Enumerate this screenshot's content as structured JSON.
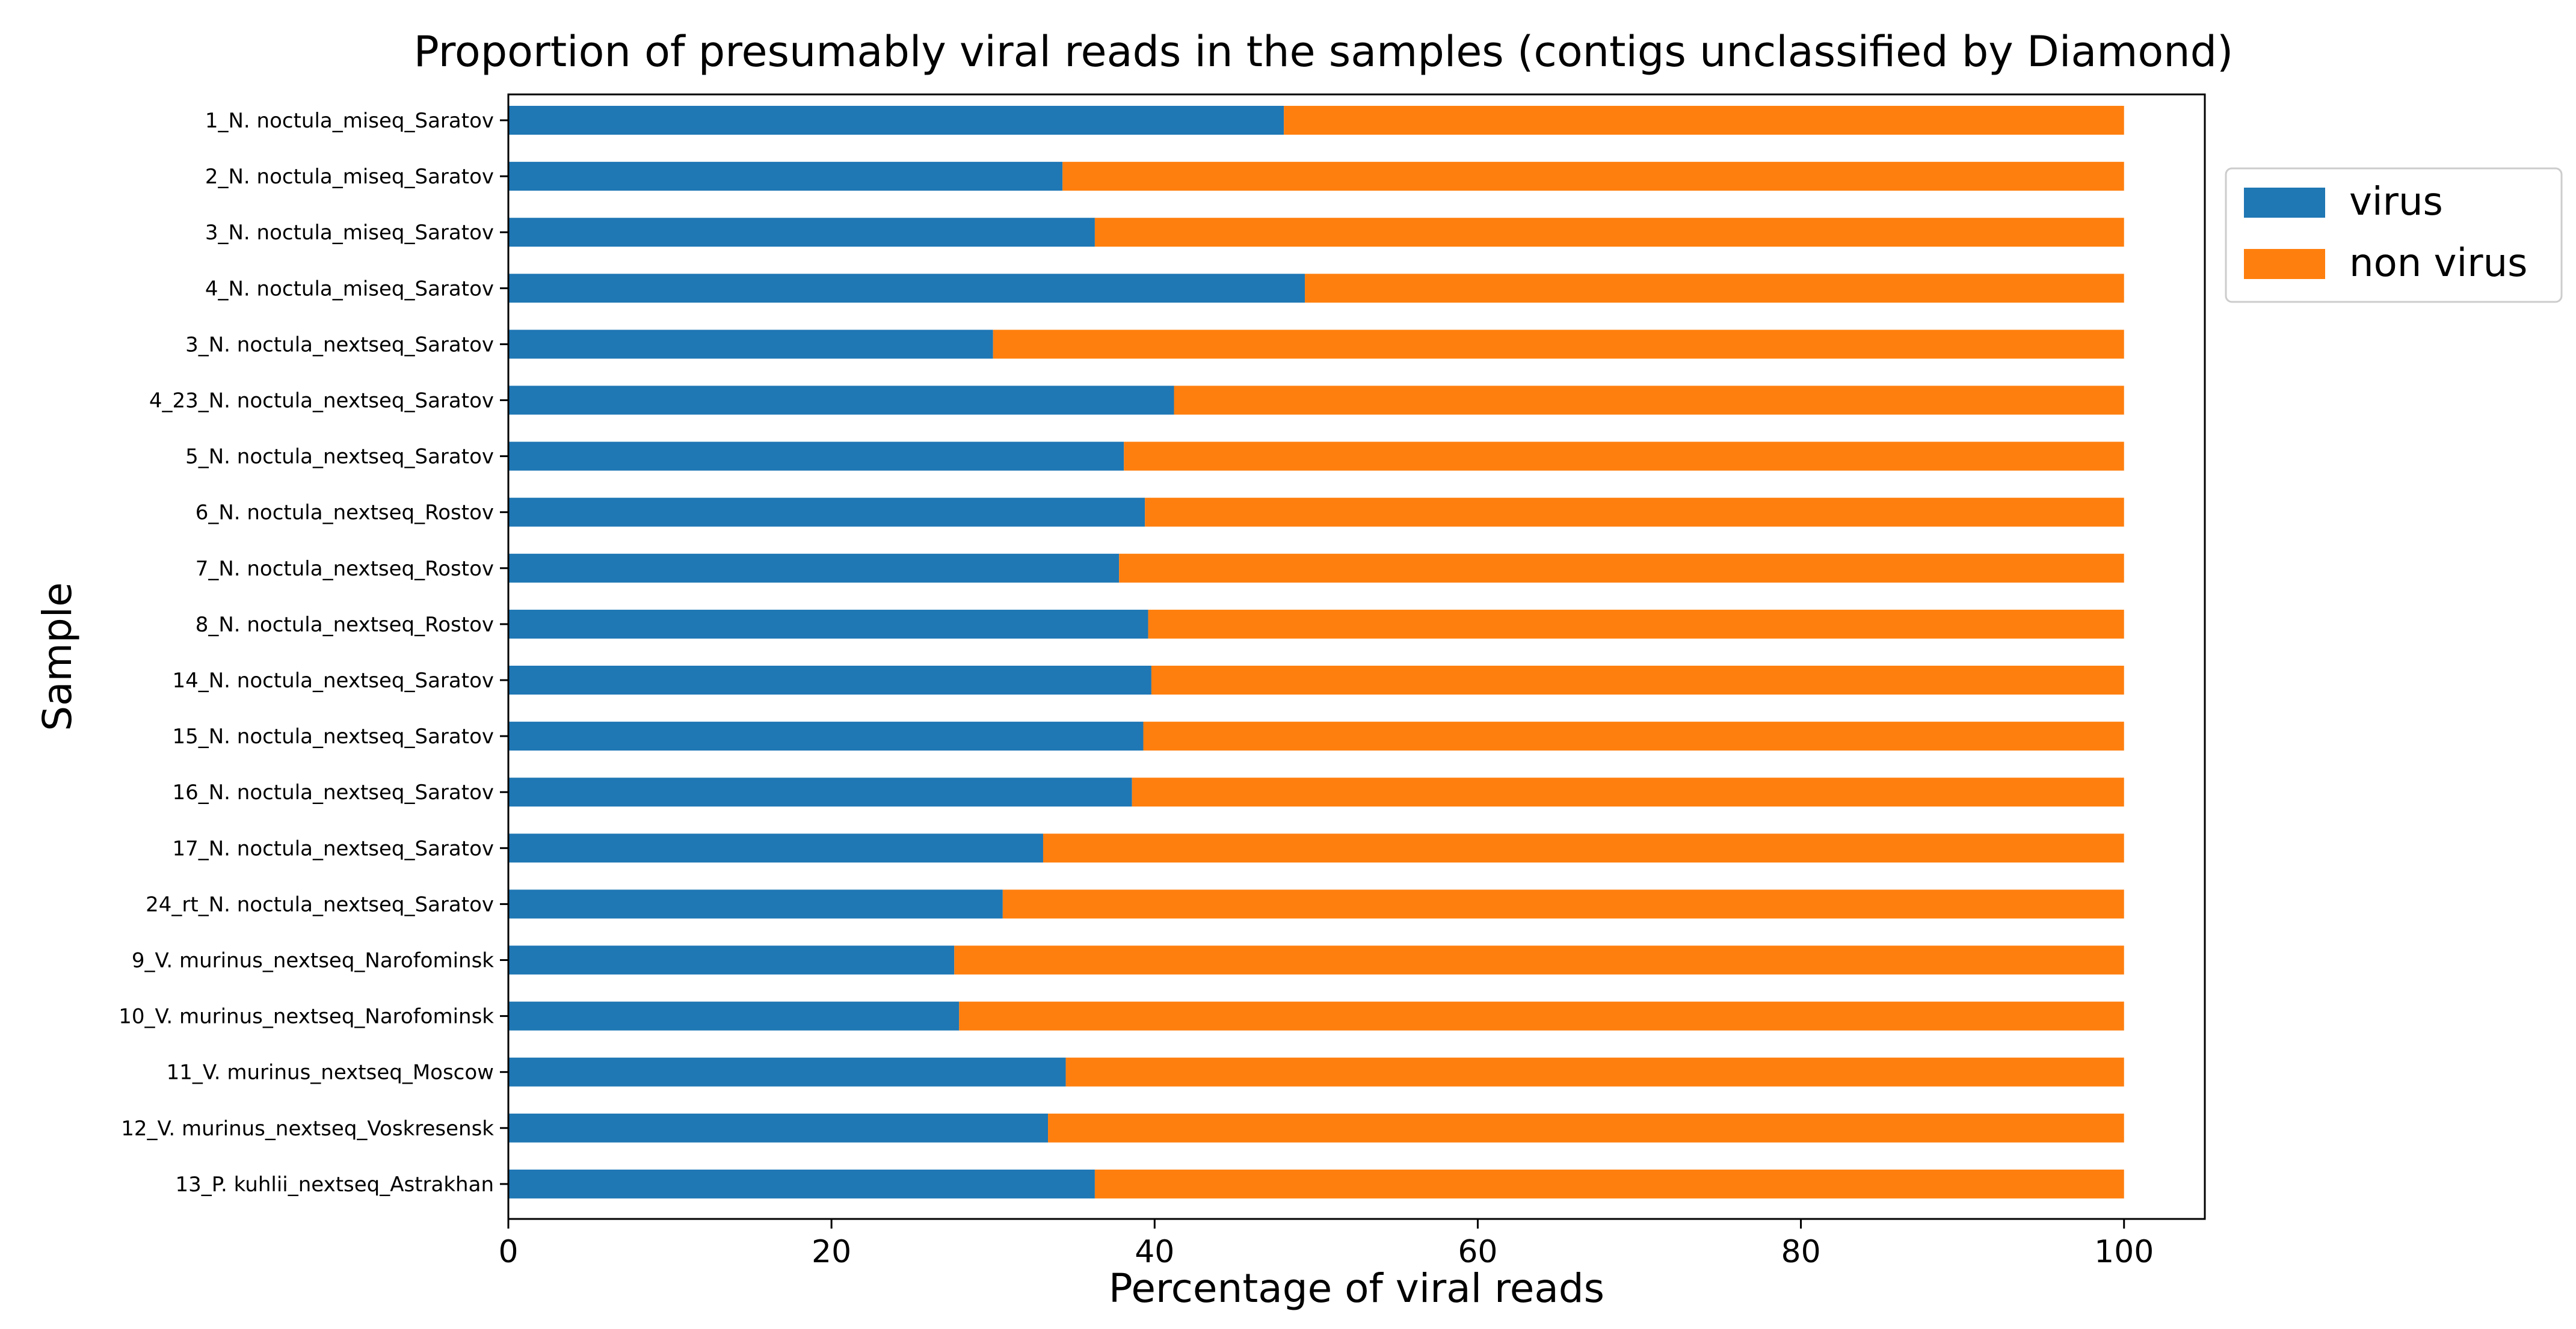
{
  "chart_data": {
    "type": "bar",
    "orientation": "horizontal",
    "stacked": true,
    "title": "Proportion of presumably viral reads in the samples (contigs unclassified by Diamond)",
    "xlabel": "Percentage of viral reads",
    "ylabel": "Sample",
    "xlim": [
      0,
      105
    ],
    "xticks": [
      "0",
      "20",
      "40",
      "60",
      "80",
      "100"
    ],
    "grid": false,
    "legend_position": "outside-right",
    "categories": [
      "1_N. noctula_miseq_Saratov",
      "2_N. noctula_miseq_Saratov",
      "3_N. noctula_miseq_Saratov",
      "4_N. noctula_miseq_Saratov",
      "3_N. noctula_nextseq_Saratov",
      "4_23_N. noctula_nextseq_Saratov",
      "5_N. noctula_nextseq_Saratov",
      "6_N. noctula_nextseq_Rostov",
      "7_N. noctula_nextseq_Rostov",
      "8_N. noctula_nextseq_Rostov",
      "14_N. noctula_nextseq_Saratov",
      "15_N. noctula_nextseq_Saratov",
      "16_N. noctula_nextseq_Saratov",
      "17_N. noctula_nextseq_Saratov",
      "24_rt_N. noctula_nextseq_Saratov",
      "9_V. murinus_nextseq_Narofominsk",
      "10_V. murinus_nextseq_Narofominsk",
      "11_V. murinus_nextseq_Moscow",
      "12_V. murinus_nextseq_Voskresensk",
      "13_P. kuhlii_nextseq_Astrakhan"
    ],
    "series": [
      {
        "name": "virus",
        "color": "#1f77b4",
        "values": [
          48.0,
          34.3,
          36.3,
          49.3,
          30.0,
          41.2,
          38.1,
          39.4,
          37.8,
          39.6,
          39.8,
          39.3,
          38.6,
          33.1,
          30.6,
          27.6,
          27.9,
          34.5,
          33.4,
          36.3
        ]
      },
      {
        "name": "non virus",
        "color": "#ff7f0e",
        "values": [
          52.0,
          65.7,
          63.7,
          50.7,
          70.0,
          58.8,
          61.9,
          60.6,
          62.2,
          60.4,
          60.2,
          60.7,
          61.4,
          66.9,
          69.4,
          72.4,
          72.1,
          65.5,
          66.6,
          63.7
        ]
      }
    ]
  }
}
